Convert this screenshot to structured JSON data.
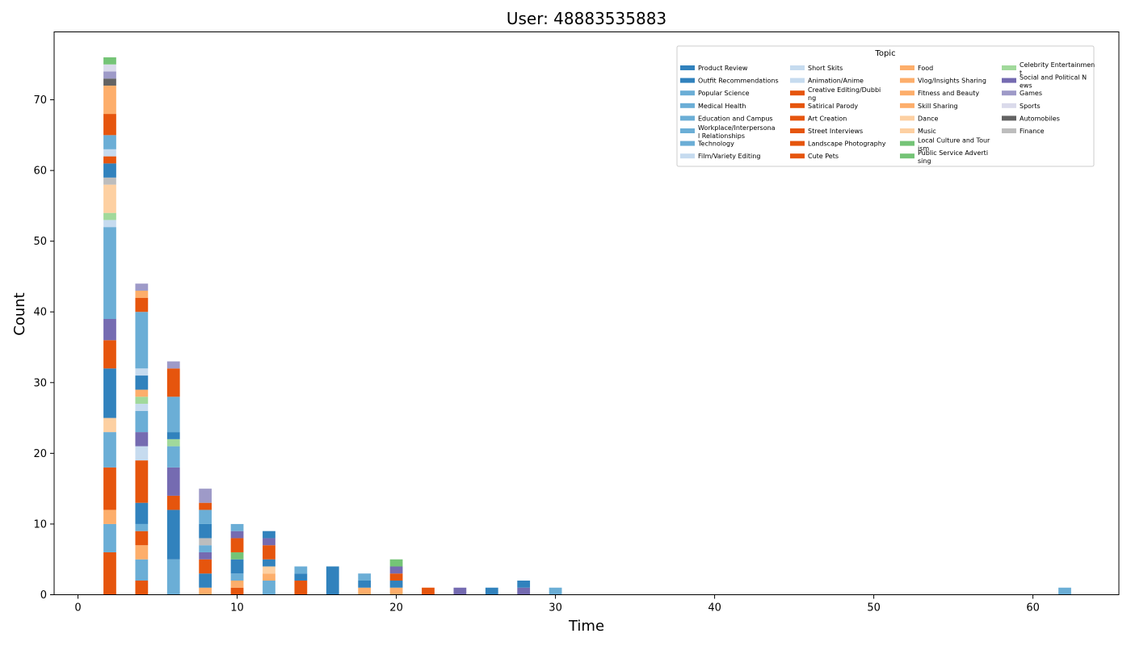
{
  "chart_data": {
    "type": "bar",
    "title": "User: 48883535883",
    "xlabel": "Time",
    "ylabel": "Count",
    "xlim": [
      -1.5,
      65.4
    ],
    "ylim": [
      0,
      79.6
    ],
    "xticks": [
      0,
      10,
      20,
      30,
      40,
      50,
      60
    ],
    "yticks": [
      0,
      10,
      20,
      30,
      40,
      50,
      60,
      70
    ],
    "bar_width": 0.8,
    "grid": false,
    "legend": {
      "title": "Topic",
      "placement": "top-right",
      "columns": 4,
      "entries": [
        {
          "name": "Product Review",
          "color": "#3182bd"
        },
        {
          "name": "Outfit Recommendations",
          "color": "#3182bd"
        },
        {
          "name": "Popular Science",
          "color": "#6baed6"
        },
        {
          "name": "Medical Health",
          "color": "#6baed6"
        },
        {
          "name": "Education and Campus",
          "color": "#6baed6"
        },
        {
          "name": "Workplace/Interpersonal Relationships",
          "color": "#6baed6"
        },
        {
          "name": "Technology",
          "color": "#6baed6"
        },
        {
          "name": "Film/Variety Editing",
          "color": "#c6dbef"
        },
        {
          "name": "Short Skits",
          "color": "#c6dbef"
        },
        {
          "name": "Animation/Anime",
          "color": "#c6dbef"
        },
        {
          "name": "Creative Editing/Dubbing",
          "color": "#e6550d"
        },
        {
          "name": "Satirical Parody",
          "color": "#e6550d"
        },
        {
          "name": "Art Creation",
          "color": "#e6550d"
        },
        {
          "name": "Street Interviews",
          "color": "#e6550d"
        },
        {
          "name": "Landscape Photography",
          "color": "#e6550d"
        },
        {
          "name": "Cute Pets",
          "color": "#e6550d"
        },
        {
          "name": "Food",
          "color": "#fdae6b"
        },
        {
          "name": "Vlog/Insights Sharing",
          "color": "#fdae6b"
        },
        {
          "name": "Fitness and Beauty",
          "color": "#fdae6b"
        },
        {
          "name": "Skill Sharing",
          "color": "#fdae6b"
        },
        {
          "name": "Dance",
          "color": "#fdd0a2"
        },
        {
          "name": "Music",
          "color": "#fdd0a2"
        },
        {
          "name": "Local Culture and Tourism",
          "color": "#74c476"
        },
        {
          "name": "Public Service Advertising",
          "color": "#74c476"
        },
        {
          "name": "Celebrity Entertainment",
          "color": "#a1d99b"
        },
        {
          "name": "Social and Political News",
          "color": "#756bb1"
        },
        {
          "name": "Games",
          "color": "#9e9ac8"
        },
        {
          "name": "Sports",
          "color": "#dadaeb"
        },
        {
          "name": "Automobiles",
          "color": "#636363"
        },
        {
          "name": "Finance",
          "color": "#bdbdbd"
        }
      ]
    },
    "stacks": [
      {
        "x": 2,
        "segments": [
          {
            "color": "#e6550d",
            "value": 6
          },
          {
            "color": "#6baed6",
            "value": 4
          },
          {
            "color": "#fdae6b",
            "value": 2
          },
          {
            "color": "#e6550d",
            "value": 6
          },
          {
            "color": "#6baed6",
            "value": 5
          },
          {
            "color": "#fdd0a2",
            "value": 2
          },
          {
            "color": "#3182bd",
            "value": 7
          },
          {
            "color": "#e6550d",
            "value": 4
          },
          {
            "color": "#756bb1",
            "value": 3
          },
          {
            "color": "#6baed6",
            "value": 13
          },
          {
            "color": "#c6dbef",
            "value": 1
          },
          {
            "color": "#a1d99b",
            "value": 1
          },
          {
            "color": "#fdd0a2",
            "value": 4
          },
          {
            "color": "#bdbdbd",
            "value": 1
          },
          {
            "color": "#3182bd",
            "value": 2
          },
          {
            "color": "#e6550d",
            "value": 1
          },
          {
            "color": "#c6dbef",
            "value": 1
          },
          {
            "color": "#6baed6",
            "value": 2
          },
          {
            "color": "#e6550d",
            "value": 3
          },
          {
            "color": "#fdae6b",
            "value": 4
          },
          {
            "color": "#636363",
            "value": 1
          },
          {
            "color": "#9e9ac8",
            "value": 1
          },
          {
            "color": "#dadaeb",
            "value": 1
          },
          {
            "color": "#74c476",
            "value": 1
          }
        ]
      },
      {
        "x": 4,
        "segments": [
          {
            "color": "#e6550d",
            "value": 2
          },
          {
            "color": "#6baed6",
            "value": 3
          },
          {
            "color": "#fdae6b",
            "value": 2
          },
          {
            "color": "#e6550d",
            "value": 2
          },
          {
            "color": "#6baed6",
            "value": 1
          },
          {
            "color": "#3182bd",
            "value": 3
          },
          {
            "color": "#e6550d",
            "value": 6
          },
          {
            "color": "#c6dbef",
            "value": 2
          },
          {
            "color": "#756bb1",
            "value": 2
          },
          {
            "color": "#6baed6",
            "value": 3
          },
          {
            "color": "#c6dbef",
            "value": 1
          },
          {
            "color": "#a1d99b",
            "value": 1
          },
          {
            "color": "#fdae6b",
            "value": 1
          },
          {
            "color": "#3182bd",
            "value": 2
          },
          {
            "color": "#c6dbef",
            "value": 1
          },
          {
            "color": "#6baed6",
            "value": 8
          },
          {
            "color": "#e6550d",
            "value": 2
          },
          {
            "color": "#fdae6b",
            "value": 1
          },
          {
            "color": "#9e9ac8",
            "value": 1
          }
        ]
      },
      {
        "x": 6,
        "segments": [
          {
            "color": "#6baed6",
            "value": 5
          },
          {
            "color": "#3182bd",
            "value": 7
          },
          {
            "color": "#e6550d",
            "value": 2
          },
          {
            "color": "#756bb1",
            "value": 4
          },
          {
            "color": "#6baed6",
            "value": 3
          },
          {
            "color": "#a1d99b",
            "value": 1
          },
          {
            "color": "#3182bd",
            "value": 1
          },
          {
            "color": "#6baed6",
            "value": 5
          },
          {
            "color": "#e6550d",
            "value": 4
          },
          {
            "color": "#9e9ac8",
            "value": 1
          }
        ]
      },
      {
        "x": 8,
        "segments": [
          {
            "color": "#fdae6b",
            "value": 1
          },
          {
            "color": "#3182bd",
            "value": 2
          },
          {
            "color": "#e6550d",
            "value": 2
          },
          {
            "color": "#756bb1",
            "value": 1
          },
          {
            "color": "#6baed6",
            "value": 1
          },
          {
            "color": "#bdbdbd",
            "value": 1
          },
          {
            "color": "#3182bd",
            "value": 2
          },
          {
            "color": "#6baed6",
            "value": 2
          },
          {
            "color": "#e6550d",
            "value": 1
          },
          {
            "color": "#9e9ac8",
            "value": 2
          }
        ]
      },
      {
        "x": 10,
        "segments": [
          {
            "color": "#e6550d",
            "value": 1
          },
          {
            "color": "#fdae6b",
            "value": 1
          },
          {
            "color": "#6baed6",
            "value": 1
          },
          {
            "color": "#3182bd",
            "value": 2
          },
          {
            "color": "#74c476",
            "value": 1
          },
          {
            "color": "#e6550d",
            "value": 2
          },
          {
            "color": "#756bb1",
            "value": 1
          },
          {
            "color": "#6baed6",
            "value": 1
          }
        ]
      },
      {
        "x": 12,
        "segments": [
          {
            "color": "#6baed6",
            "value": 2
          },
          {
            "color": "#fdae6b",
            "value": 1
          },
          {
            "color": "#fdd0a2",
            "value": 1
          },
          {
            "color": "#3182bd",
            "value": 1
          },
          {
            "color": "#e6550d",
            "value": 2
          },
          {
            "color": "#756bb1",
            "value": 1
          },
          {
            "color": "#3182bd",
            "value": 1
          }
        ]
      },
      {
        "x": 14,
        "segments": [
          {
            "color": "#e6550d",
            "value": 2
          },
          {
            "color": "#3182bd",
            "value": 1
          },
          {
            "color": "#6baed6",
            "value": 1
          }
        ]
      },
      {
        "x": 16,
        "segments": [
          {
            "color": "#3182bd",
            "value": 4
          }
        ]
      },
      {
        "x": 18,
        "segments": [
          {
            "color": "#fdae6b",
            "value": 1
          },
          {
            "color": "#3182bd",
            "value": 1
          },
          {
            "color": "#6baed6",
            "value": 1
          }
        ]
      },
      {
        "x": 20,
        "segments": [
          {
            "color": "#fdae6b",
            "value": 1
          },
          {
            "color": "#3182bd",
            "value": 1
          },
          {
            "color": "#e6550d",
            "value": 1
          },
          {
            "color": "#756bb1",
            "value": 1
          },
          {
            "color": "#74c476",
            "value": 1
          }
        ]
      },
      {
        "x": 22,
        "segments": [
          {
            "color": "#e6550d",
            "value": 1
          }
        ]
      },
      {
        "x": 24,
        "segments": [
          {
            "color": "#756bb1",
            "value": 1
          }
        ]
      },
      {
        "x": 26,
        "segments": [
          {
            "color": "#3182bd",
            "value": 1
          }
        ]
      },
      {
        "x": 28,
        "segments": [
          {
            "color": "#756bb1",
            "value": 1
          },
          {
            "color": "#3182bd",
            "value": 1
          }
        ]
      },
      {
        "x": 30,
        "segments": [
          {
            "color": "#6baed6",
            "value": 1
          }
        ]
      },
      {
        "x": 62,
        "segments": [
          {
            "color": "#6baed6",
            "value": 1
          }
        ]
      }
    ]
  }
}
